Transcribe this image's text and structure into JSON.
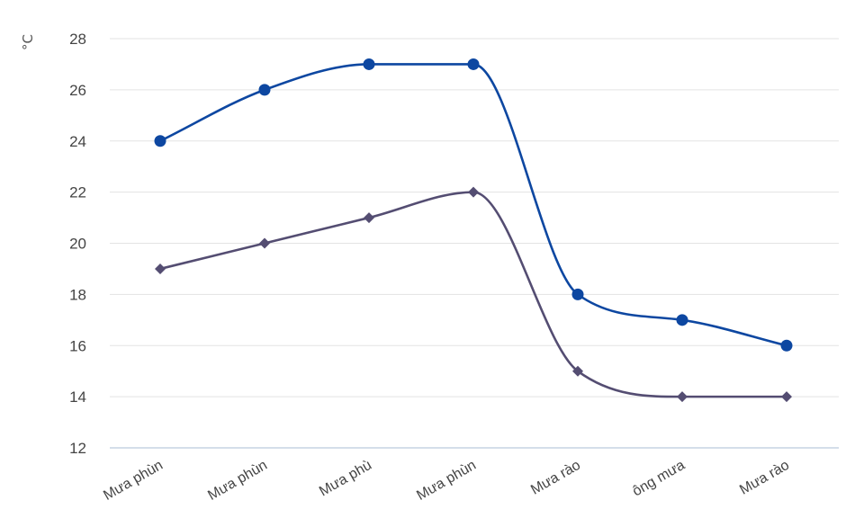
{
  "chart_data": {
    "type": "line",
    "categories": [
      "Mưa phùn",
      "Mưa phùn",
      "Mưa phù",
      "Mưa phùn",
      "Mưa rào",
      "ông mưa",
      "Mưa rào"
    ],
    "series": [
      {
        "values": [
          24,
          26,
          27,
          27,
          18,
          17,
          16
        ],
        "color": "#0d47a1",
        "marker": "circle"
      },
      {
        "values": [
          19,
          20,
          21,
          22,
          15,
          14,
          14
        ],
        "color": "#544d72",
        "marker": "diamond"
      }
    ],
    "ylabel": "°C",
    "ylim": [
      12,
      28
    ],
    "yticks": [
      12,
      14,
      16,
      18,
      20,
      22,
      24,
      26,
      28
    ],
    "grid": true,
    "smooth": true
  }
}
